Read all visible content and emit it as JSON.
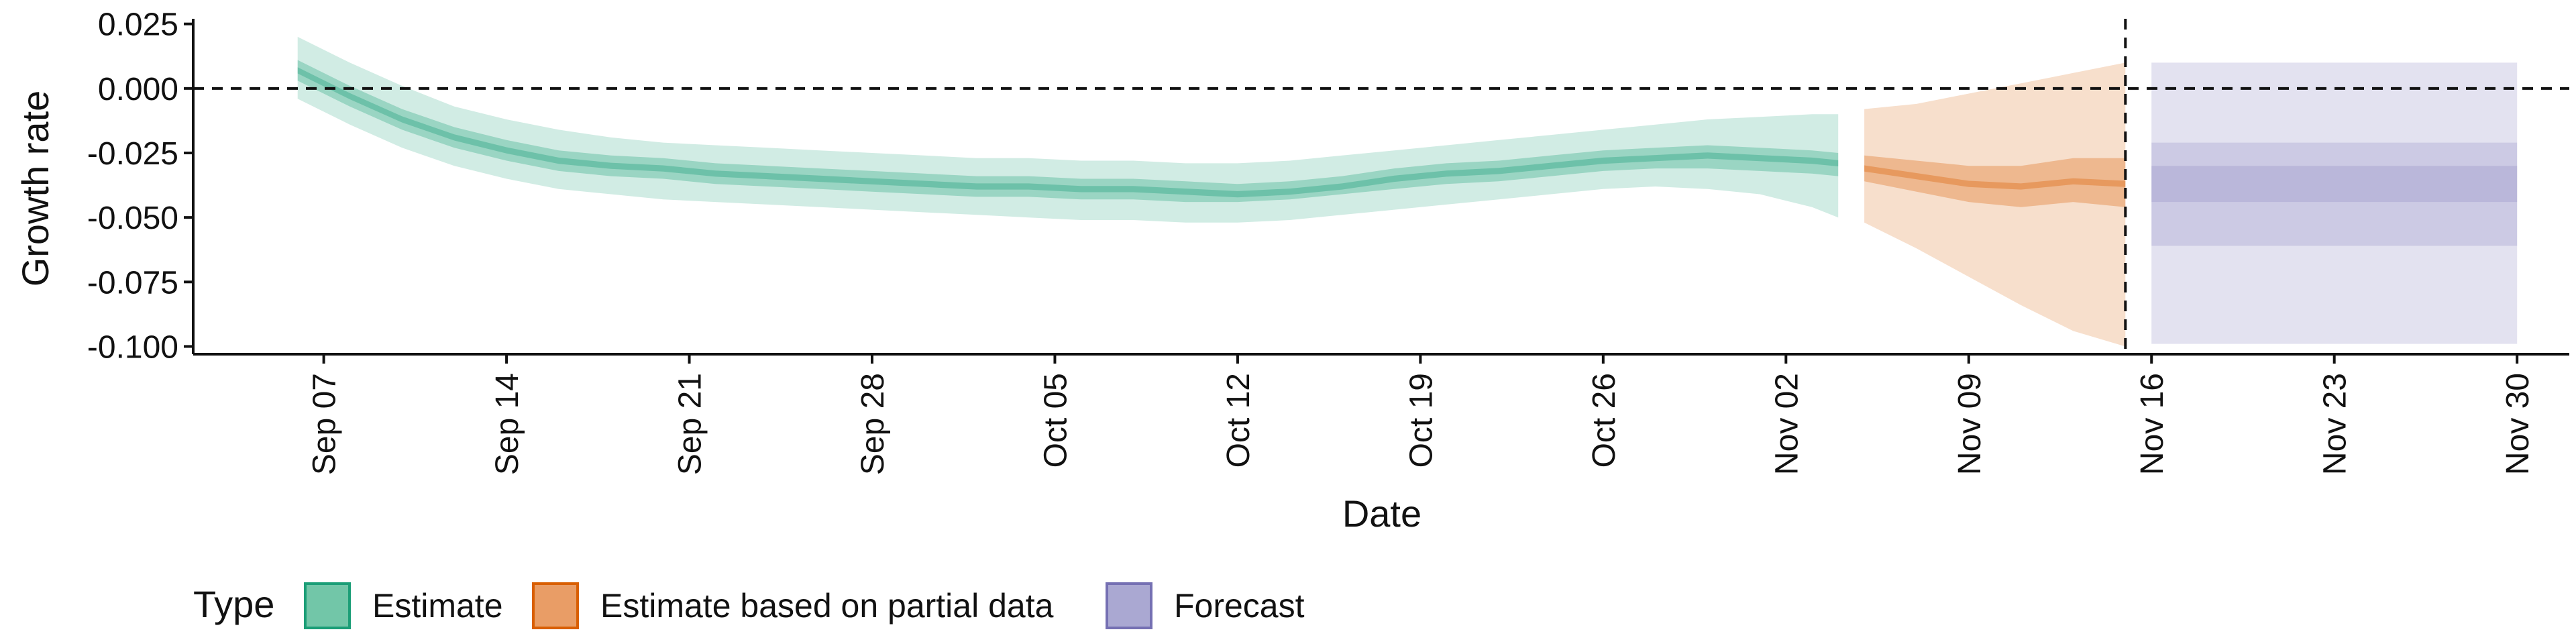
{
  "chart_data": {
    "type": "area",
    "xlabel": "Date",
    "ylabel": "Growth rate",
    "x_tick_labels": [
      "Sep 07",
      "Sep 14",
      "Sep 21",
      "Sep 28",
      "Oct 05",
      "Oct 12",
      "Oct 19",
      "Oct 26",
      "Nov 02",
      "Nov 09",
      "Nov 16",
      "Nov 23",
      "Nov 30"
    ],
    "x_tick_dates": [
      "2020-09-07",
      "2020-09-14",
      "2020-09-21",
      "2020-09-28",
      "2020-10-05",
      "2020-10-12",
      "2020-10-19",
      "2020-10-26",
      "2020-11-02",
      "2020-11-09",
      "2020-11-16",
      "2020-11-23",
      "2020-11-30"
    ],
    "xlim": [
      "2020-09-02",
      "2020-12-02"
    ],
    "ylim": [
      -0.103,
      0.027
    ],
    "y_ticks": [
      0.025,
      0.0,
      -0.025,
      -0.05,
      -0.075,
      -0.1
    ],
    "y_tick_labels": [
      "0.025",
      "0.000",
      "-0.025",
      "-0.050",
      "-0.075",
      "-0.100"
    ],
    "reference_lines": {
      "horizontal_y": 0.0,
      "vertical_date": "2020-11-15",
      "style": "dashed"
    },
    "legend": {
      "title": "Type",
      "position": "bottom",
      "items": [
        {
          "label": "Estimate",
          "fill": "#72c6a8",
          "stroke": "#1b9e77"
        },
        {
          "label": "Estimate based on partial data",
          "fill": "#e99d66",
          "stroke": "#d95f02"
        },
        {
          "label": "Forecast",
          "fill": "#aaa8d2",
          "stroke": "#7570b3"
        }
      ]
    },
    "series": [
      {
        "name": "Estimate",
        "color": "#1b9e77",
        "dates": [
          "2020-09-06",
          "2020-09-08",
          "2020-09-10",
          "2020-09-12",
          "2020-09-14",
          "2020-09-16",
          "2020-09-18",
          "2020-09-20",
          "2020-09-22",
          "2020-09-24",
          "2020-09-26",
          "2020-09-28",
          "2020-09-30",
          "2020-10-02",
          "2020-10-04",
          "2020-10-06",
          "2020-10-08",
          "2020-10-10",
          "2020-10-12",
          "2020-10-14",
          "2020-10-16",
          "2020-10-18",
          "2020-10-20",
          "2020-10-22",
          "2020-10-24",
          "2020-10-26",
          "2020-10-28",
          "2020-10-30",
          "2020-11-01",
          "2020-11-03",
          "2020-11-04"
        ],
        "median": [
          0.007,
          -0.003,
          -0.012,
          -0.019,
          -0.024,
          -0.028,
          -0.03,
          -0.031,
          -0.033,
          -0.034,
          -0.035,
          -0.036,
          -0.037,
          -0.038,
          -0.038,
          -0.039,
          -0.039,
          -0.04,
          -0.041,
          -0.04,
          -0.038,
          -0.035,
          -0.033,
          -0.032,
          -0.03,
          -0.028,
          -0.027,
          -0.026,
          -0.027,
          -0.028,
          -0.029
        ],
        "lower_50": [
          0.003,
          -0.007,
          -0.016,
          -0.023,
          -0.028,
          -0.032,
          -0.034,
          -0.035,
          -0.037,
          -0.038,
          -0.039,
          -0.04,
          -0.041,
          -0.042,
          -0.042,
          -0.043,
          -0.043,
          -0.044,
          -0.044,
          -0.043,
          -0.041,
          -0.039,
          -0.037,
          -0.036,
          -0.034,
          -0.032,
          -0.031,
          -0.031,
          -0.032,
          -0.033,
          -0.034
        ],
        "upper_50": [
          0.011,
          0.001,
          -0.008,
          -0.015,
          -0.02,
          -0.024,
          -0.026,
          -0.027,
          -0.029,
          -0.03,
          -0.031,
          -0.032,
          -0.033,
          -0.034,
          -0.034,
          -0.035,
          -0.035,
          -0.036,
          -0.037,
          -0.036,
          -0.034,
          -0.031,
          -0.029,
          -0.028,
          -0.026,
          -0.024,
          -0.023,
          -0.022,
          -0.023,
          -0.024,
          -0.025
        ],
        "lower_90": [
          -0.004,
          -0.014,
          -0.023,
          -0.03,
          -0.035,
          -0.039,
          -0.041,
          -0.043,
          -0.044,
          -0.045,
          -0.046,
          -0.047,
          -0.048,
          -0.049,
          -0.05,
          -0.051,
          -0.051,
          -0.052,
          -0.052,
          -0.051,
          -0.049,
          -0.047,
          -0.045,
          -0.043,
          -0.041,
          -0.039,
          -0.038,
          -0.039,
          -0.041,
          -0.046,
          -0.05
        ],
        "upper_90": [
          0.02,
          0.01,
          0.001,
          -0.007,
          -0.012,
          -0.016,
          -0.019,
          -0.021,
          -0.022,
          -0.023,
          -0.024,
          -0.025,
          -0.026,
          -0.027,
          -0.027,
          -0.028,
          -0.028,
          -0.029,
          -0.029,
          -0.028,
          -0.026,
          -0.024,
          -0.022,
          -0.02,
          -0.018,
          -0.016,
          -0.014,
          -0.012,
          -0.011,
          -0.01,
          -0.01
        ]
      },
      {
        "name": "Estimate based on partial data",
        "color": "#d95f02",
        "dates": [
          "2020-11-05",
          "2020-11-07",
          "2020-11-09",
          "2020-11-11",
          "2020-11-13",
          "2020-11-15"
        ],
        "median": [
          -0.031,
          -0.034,
          -0.037,
          -0.038,
          -0.036,
          -0.037
        ],
        "lower_50": [
          -0.036,
          -0.04,
          -0.044,
          -0.046,
          -0.044,
          -0.046
        ],
        "upper_50": [
          -0.026,
          -0.028,
          -0.03,
          -0.03,
          -0.027,
          -0.027
        ],
        "lower_90": [
          -0.052,
          -0.062,
          -0.073,
          -0.084,
          -0.094,
          -0.1
        ],
        "upper_90": [
          -0.008,
          -0.006,
          -0.002,
          0.002,
          0.006,
          0.01
        ]
      },
      {
        "name": "Forecast",
        "color": "#7570b3",
        "dates": [
          "2020-11-16",
          "2020-11-30"
        ],
        "median": [
          -0.037,
          -0.037
        ],
        "lower_30": [
          -0.044,
          -0.044
        ],
        "upper_30": [
          -0.03,
          -0.03
        ],
        "lower_60": [
          -0.061,
          -0.061
        ],
        "upper_60": [
          -0.021,
          -0.021
        ],
        "lower_90": [
          -0.099,
          -0.099
        ],
        "upper_90": [
          0.01,
          0.01
        ]
      }
    ]
  }
}
